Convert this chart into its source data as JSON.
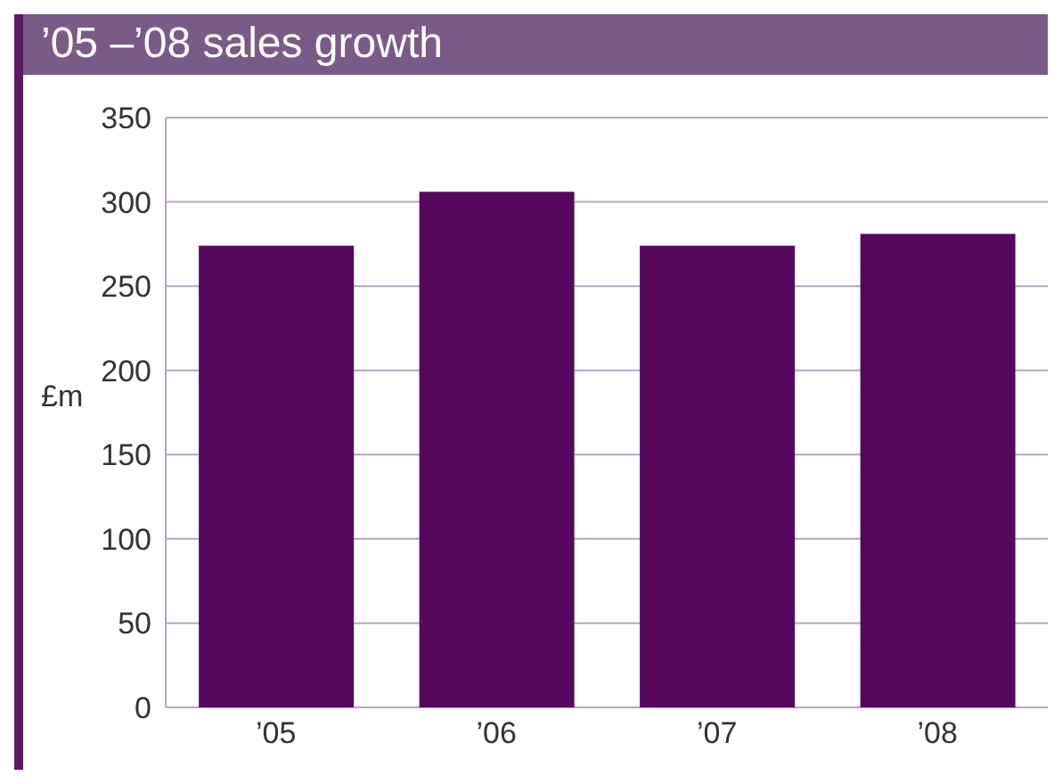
{
  "chart_data": {
    "type": "bar",
    "title": "’05 –’08 sales growth",
    "ylabel": "£m",
    "categories": [
      "’05",
      "’06",
      "’07",
      "’08"
    ],
    "values": [
      274,
      306,
      274,
      281
    ],
    "color": "#55085e",
    "ylim": [
      0,
      350
    ],
    "yticks": [
      0,
      50,
      100,
      150,
      200,
      250,
      300,
      350
    ],
    "grid": "y"
  }
}
